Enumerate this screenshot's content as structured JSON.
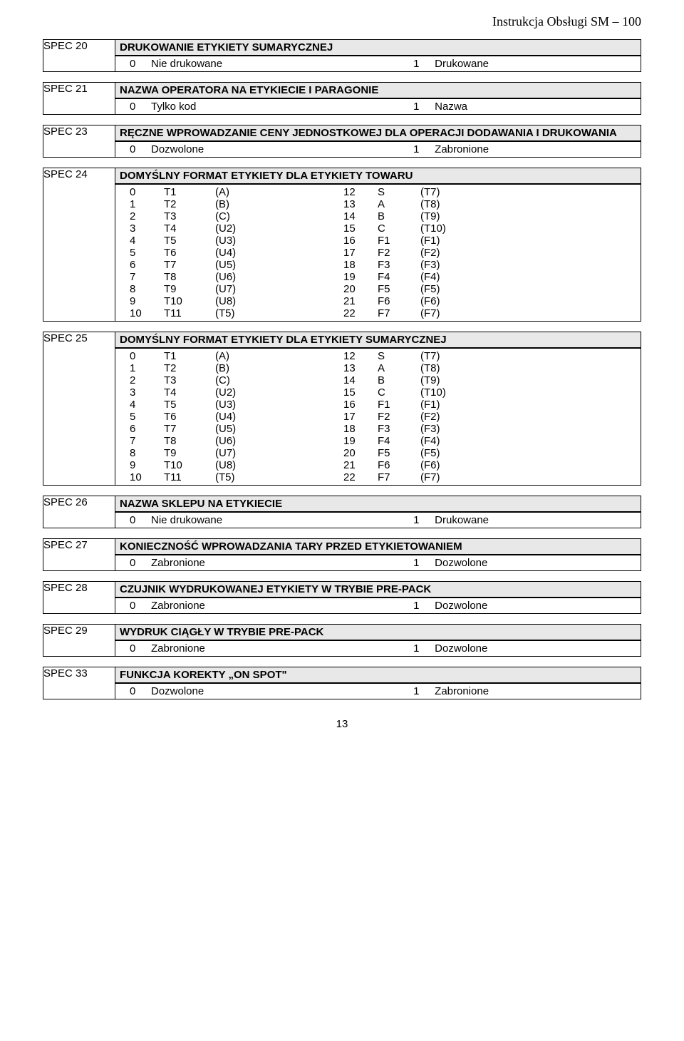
{
  "header_text": "Instrukcja Obsługi SM – 100",
  "spec20": {
    "label": "SPEC 20",
    "title": "DRUKOWANIE ETYKIETY SUMARYCZNEJ",
    "pair": {
      "left": [
        "0",
        "Nie drukowane"
      ],
      "right": [
        "1",
        "Drukowane"
      ]
    }
  },
  "spec21": {
    "label": "SPEC 21",
    "title": "NAZWA OPERATORA NA ETYKIECIE I PARAGONIE",
    "pair": {
      "left": [
        "0",
        "Tylko kod"
      ],
      "right": [
        "1",
        "Nazwa"
      ]
    }
  },
  "spec23": {
    "label": "SPEC 23",
    "title": "RĘCZNE WPROWADZANIE CENY JEDNOSTKOWEJ DLA OPERACJI DODAWANIA I DRUKOWANIA",
    "pair": {
      "left": [
        "0",
        "Dozwolone"
      ],
      "right": [
        "1",
        "Zabronione"
      ]
    }
  },
  "spec24": {
    "label": "SPEC 24",
    "title": "DOMYŚLNY FORMAT ETYKIETY DLA ETYKIETY TOWARU",
    "rows": [
      [
        "0",
        "T1",
        "(A)",
        "12",
        "S",
        "(T7)"
      ],
      [
        "1",
        "T2",
        "(B)",
        "13",
        "A",
        "(T8)"
      ],
      [
        "2",
        "T3",
        "(C)",
        "14",
        "B",
        "(T9)"
      ],
      [
        "3",
        "T4",
        "(U2)",
        "15",
        "C",
        "(T10)"
      ],
      [
        "4",
        "T5",
        "(U3)",
        "16",
        "F1",
        "(F1)"
      ],
      [
        "5",
        "T6",
        "(U4)",
        "17",
        "F2",
        "(F2)"
      ],
      [
        "6",
        "T7",
        "(U5)",
        "18",
        "F3",
        "(F3)"
      ],
      [
        "7",
        "T8",
        "(U6)",
        "19",
        "F4",
        "(F4)"
      ],
      [
        "8",
        "T9",
        "(U7)",
        "20",
        "F5",
        "(F5)"
      ],
      [
        "9",
        "T10",
        "(U8)",
        "21",
        "F6",
        "(F6)"
      ],
      [
        "10",
        "T11",
        "(T5)",
        "22",
        "F7",
        "(F7)"
      ]
    ]
  },
  "spec25": {
    "label": "SPEC 25",
    "title": "DOMYŚLNY FORMAT ETYKIETY DLA ETYKIETY SUMARYCZNEJ",
    "rows": [
      [
        "0",
        "T1",
        "(A)",
        "12",
        "S",
        "(T7)"
      ],
      [
        "1",
        "T2",
        "(B)",
        "13",
        "A",
        "(T8)"
      ],
      [
        "2",
        "T3",
        "(C)",
        "14",
        "B",
        "(T9)"
      ],
      [
        "3",
        "T4",
        "(U2)",
        "15",
        "C",
        "(T10)"
      ],
      [
        "4",
        "T5",
        "(U3)",
        "16",
        "F1",
        "(F1)"
      ],
      [
        "5",
        "T6",
        "(U4)",
        "17",
        "F2",
        "(F2)"
      ],
      [
        "6",
        "T7",
        "(U5)",
        "18",
        "F3",
        "(F3)"
      ],
      [
        "7",
        "T8",
        "(U6)",
        "19",
        "F4",
        "(F4)"
      ],
      [
        "8",
        "T9",
        "(U7)",
        "20",
        "F5",
        "(F5)"
      ],
      [
        "9",
        "T10",
        "(U8)",
        "21",
        "F6",
        "(F6)"
      ],
      [
        "10",
        "T11",
        "(T5)",
        "22",
        "F7",
        "(F7)"
      ]
    ]
  },
  "spec26": {
    "label": "SPEC 26",
    "title": "NAZWA SKLEPU NA ETYKIECIE",
    "pair": {
      "left": [
        "0",
        "Nie drukowane"
      ],
      "right": [
        "1",
        "Drukowane"
      ]
    }
  },
  "spec27": {
    "label": "SPEC 27",
    "title": "KONIECZNOŚĆ WPROWADZANIA TARY PRZED ETYKIETOWANIEM",
    "pair": {
      "left": [
        "0",
        "Zabronione"
      ],
      "right": [
        "1",
        "Dozwolone"
      ]
    }
  },
  "spec28": {
    "label": "SPEC 28",
    "title": "CZUJNIK WYDRUKOWANEJ ETYKIETY W TRYBIE PRE-PACK",
    "pair": {
      "left": [
        "0",
        "Zabronione"
      ],
      "right": [
        "1",
        "Dozwolone"
      ]
    }
  },
  "spec29": {
    "label": "SPEC 29",
    "title": "WYDRUK CIĄGŁY W TRYBIE PRE-PACK",
    "pair": {
      "left": [
        "0",
        "Zabronione"
      ],
      "right": [
        "1",
        "Dozwolone"
      ]
    }
  },
  "spec33": {
    "label": "SPEC 33",
    "title": "FUNKCJA KOREKTY „ON SPOT\"",
    "pair": {
      "left": [
        "0",
        "Dozwolone"
      ],
      "right": [
        "1",
        "Zabronione"
      ]
    }
  },
  "page_number": "13"
}
